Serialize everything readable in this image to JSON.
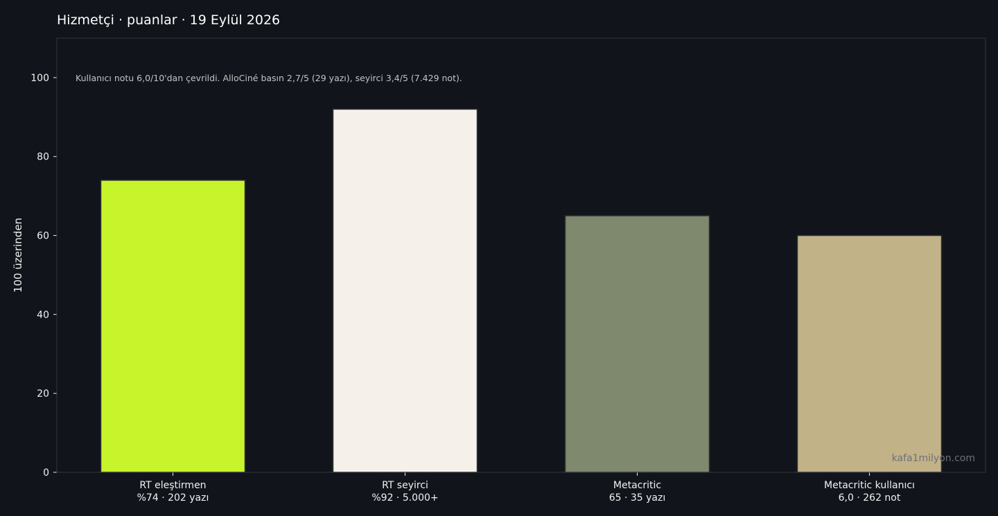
{
  "chart_data": {
    "type": "bar",
    "title": "Hizmetçi · puanlar · 19 Eylül 2026",
    "ylabel": "100 üzerinden",
    "xlabel": "",
    "ylim": [
      0,
      110
    ],
    "yticks": [
      0,
      20,
      40,
      60,
      80,
      100
    ],
    "grid": false,
    "categories": [
      [
        "RT eleştirmen",
        "%74 · 202 yazı"
      ],
      [
        "RT seyirci",
        "%92 · 5.000+"
      ],
      [
        "Metacritic",
        "65 · 35 yazı"
      ],
      [
        "Metacritic kullanıcı",
        "6,0 · 262 not"
      ]
    ],
    "values": [
      74,
      92,
      65,
      60
    ],
    "colors": [
      "#c8f42c",
      "#f5f1ea",
      "#7e896d",
      "#c2b288"
    ],
    "annotation": "Kullanıcı notu 6,0/10'dan çevrildi. AlloCiné basın 2,7/5 (29 yazı), seyirci 3,4/5 (7.429 not).",
    "watermark": "kafa1milyon.com"
  },
  "style": {
    "background": "#11141b",
    "plot_background": "#11141b",
    "frame_color": "#34373d",
    "bar_edge": "#2e3035"
  }
}
